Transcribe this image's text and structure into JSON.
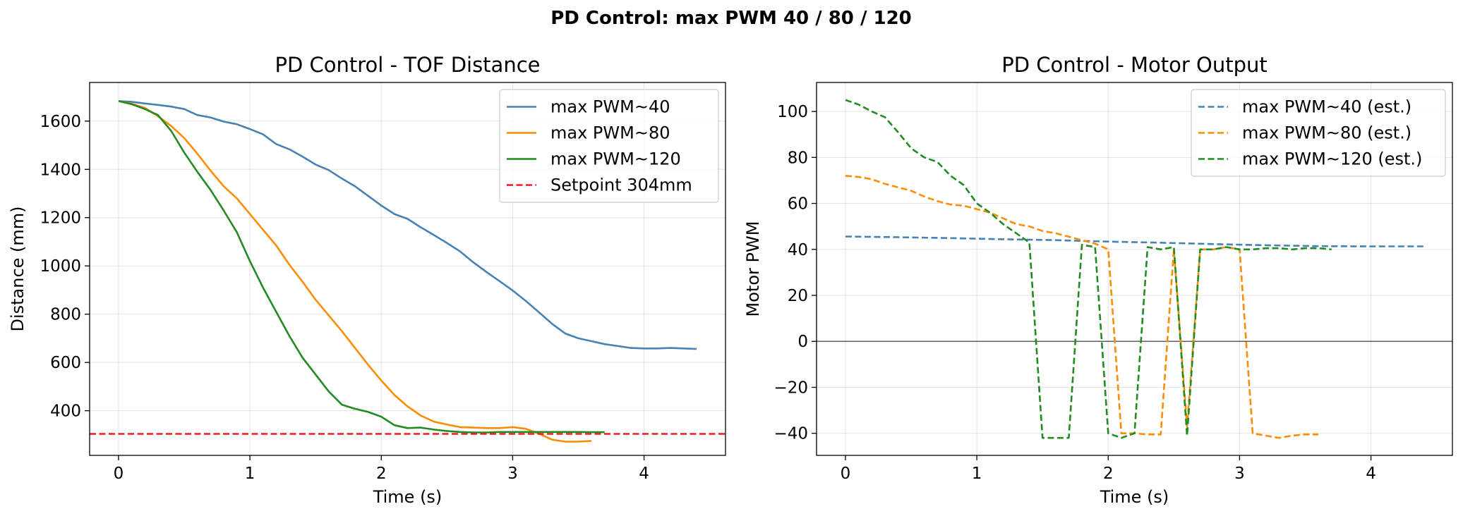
{
  "figure": {
    "suptitle": "PD Control: max PWM 40 / 80 / 120"
  },
  "chart_data": [
    {
      "type": "line",
      "title": "PD Control - TOF Distance",
      "xlabel": "Time (s)",
      "ylabel": "Distance (mm)",
      "xlim": [
        -0.22,
        4.62
      ],
      "ylim": [
        215,
        1760
      ],
      "xticks": [
        0,
        1,
        2,
        3,
        4
      ],
      "yticks": [
        400,
        600,
        800,
        1000,
        1200,
        1400,
        1600
      ],
      "grid": true,
      "legend_position": "top-right",
      "series": [
        {
          "name": "max PWM~40",
          "color": "#4682b4",
          "dash": "solid",
          "x": [
            0,
            0.1,
            0.2,
            0.3,
            0.4,
            0.5,
            0.6,
            0.7,
            0.8,
            0.9,
            1.0,
            1.1,
            1.2,
            1.3,
            1.4,
            1.5,
            1.6,
            1.7,
            1.8,
            1.9,
            2.0,
            2.1,
            2.2,
            2.3,
            2.4,
            2.5,
            2.6,
            2.7,
            2.8,
            2.9,
            3.0,
            3.1,
            3.2,
            3.3,
            3.4,
            3.5,
            3.6,
            3.7,
            3.8,
            3.9,
            4.0,
            4.1,
            4.2,
            4.3,
            4.4
          ],
          "y": [
            1683,
            1680,
            1673,
            1667,
            1660,
            1650,
            1625,
            1615,
            1598,
            1587,
            1567,
            1545,
            1505,
            1483,
            1453,
            1420,
            1397,
            1362,
            1330,
            1290,
            1250,
            1215,
            1195,
            1160,
            1128,
            1095,
            1060,
            1015,
            975,
            937,
            898,
            855,
            808,
            760,
            720,
            700,
            688,
            676,
            668,
            660,
            658,
            658,
            660,
            658,
            656
          ]
        },
        {
          "name": "max PWM~80",
          "color": "#ff8c00",
          "dash": "solid",
          "x": [
            0,
            0.1,
            0.2,
            0.3,
            0.4,
            0.5,
            0.6,
            0.7,
            0.8,
            0.9,
            1.0,
            1.1,
            1.2,
            1.3,
            1.4,
            1.5,
            1.6,
            1.7,
            1.8,
            1.9,
            2.0,
            2.1,
            2.2,
            2.3,
            2.4,
            2.5,
            2.6,
            2.7,
            2.8,
            2.9,
            3.0,
            3.1,
            3.2,
            3.3,
            3.4,
            3.5,
            3.6
          ],
          "y": [
            1683,
            1672,
            1655,
            1620,
            1580,
            1530,
            1465,
            1395,
            1330,
            1280,
            1215,
            1150,
            1085,
            1005,
            935,
            860,
            795,
            730,
            660,
            590,
            525,
            465,
            418,
            380,
            355,
            343,
            332,
            330,
            328,
            328,
            332,
            325,
            305,
            280,
            272,
            272,
            275
          ]
        },
        {
          "name": "max PWM~120",
          "color": "#228b22",
          "dash": "solid",
          "x": [
            0,
            0.1,
            0.2,
            0.3,
            0.4,
            0.5,
            0.6,
            0.7,
            0.8,
            0.9,
            1.0,
            1.1,
            1.2,
            1.3,
            1.4,
            1.5,
            1.6,
            1.7,
            1.8,
            1.9,
            2.0,
            2.1,
            2.2,
            2.3,
            2.4,
            2.5,
            2.6,
            2.7,
            2.8,
            2.9,
            3.0,
            3.1,
            3.2,
            3.3,
            3.4,
            3.5,
            3.6,
            3.7
          ],
          "y": [
            1683,
            1670,
            1650,
            1625,
            1560,
            1470,
            1390,
            1315,
            1230,
            1140,
            1020,
            910,
            810,
            710,
            620,
            550,
            480,
            425,
            408,
            395,
            375,
            340,
            328,
            330,
            322,
            316,
            312,
            310,
            310,
            312,
            312,
            312,
            312,
            312,
            312,
            312,
            311,
            311
          ]
        },
        {
          "name": "Setpoint 304mm",
          "color": "#ee1c1c",
          "dash": "dashed",
          "x": [
            -0.22,
            4.62
          ],
          "y": [
            304,
            304
          ]
        }
      ]
    },
    {
      "type": "line",
      "title": "PD Control - Motor Output",
      "xlabel": "Time (s)",
      "ylabel": "Motor PWM",
      "xlim": [
        -0.22,
        4.62
      ],
      "ylim": [
        -49.6,
        112.6
      ],
      "xticks": [
        0,
        1,
        2,
        3,
        4
      ],
      "yticks": [
        -40,
        -20,
        0,
        20,
        40,
        60,
        80,
        100
      ],
      "grid": true,
      "zero_line": true,
      "legend_position": "top-right",
      "series": [
        {
          "name": "max PWM~40 (est.)",
          "color": "#4682b4",
          "dash": "dashed",
          "x": [
            0,
            0.4,
            0.8,
            1.2,
            1.6,
            2.0,
            2.4,
            2.8,
            3.2,
            3.6,
            4.0,
            4.4
          ],
          "y": [
            45.6,
            45.3,
            44.9,
            44.4,
            44.0,
            43.4,
            42.9,
            42.3,
            41.8,
            41.4,
            41.3,
            41.3
          ]
        },
        {
          "name": "max PWM~80 (est.)",
          "color": "#ff8c00",
          "dash": "dashed",
          "x": [
            0,
            0.1,
            0.2,
            0.3,
            0.4,
            0.5,
            0.6,
            0.7,
            0.8,
            0.9,
            1.0,
            1.1,
            1.2,
            1.3,
            1.4,
            1.5,
            1.6,
            1.7,
            1.8,
            1.9,
            2.0,
            2.1,
            2.2,
            2.3,
            2.4,
            2.5,
            2.6,
            2.7,
            2.8,
            2.9,
            3.0,
            3.1,
            3.2,
            3.3,
            3.4,
            3.5,
            3.6
          ],
          "y": [
            72,
            71.5,
            70.5,
            68.5,
            67,
            65.5,
            63,
            61,
            59.5,
            59,
            57.5,
            56,
            53.5,
            51,
            50,
            48,
            47,
            45.5,
            44,
            42.5,
            40,
            -40,
            -40,
            -40.5,
            -40.5,
            40,
            -37,
            40,
            40,
            41,
            40,
            -40,
            -41,
            -42,
            -41,
            -40.5,
            -40.5
          ]
        },
        {
          "name": "max PWM~120 (est.)",
          "color": "#228b22",
          "dash": "dashed",
          "x": [
            0,
            0.1,
            0.2,
            0.3,
            0.4,
            0.5,
            0.6,
            0.7,
            0.8,
            0.9,
            1.0,
            1.1,
            1.2,
            1.3,
            1.4,
            1.5,
            1.6,
            1.7,
            1.8,
            1.9,
            2.0,
            2.1,
            2.2,
            2.3,
            2.4,
            2.5,
            2.6,
            2.7,
            2.8,
            2.9,
            3.0,
            3.1,
            3.2,
            3.3,
            3.4,
            3.5,
            3.6,
            3.7
          ],
          "y": [
            105,
            103,
            100,
            97.5,
            91,
            84,
            80,
            78,
            72,
            68,
            60,
            56,
            51,
            47,
            43,
            -42,
            -42,
            -42,
            42,
            41,
            -40,
            -42,
            -40,
            41,
            40,
            41,
            -41,
            40,
            40,
            41,
            40,
            40,
            40.5,
            40.5,
            40,
            40.5,
            40.5,
            40
          ]
        }
      ]
    }
  ]
}
